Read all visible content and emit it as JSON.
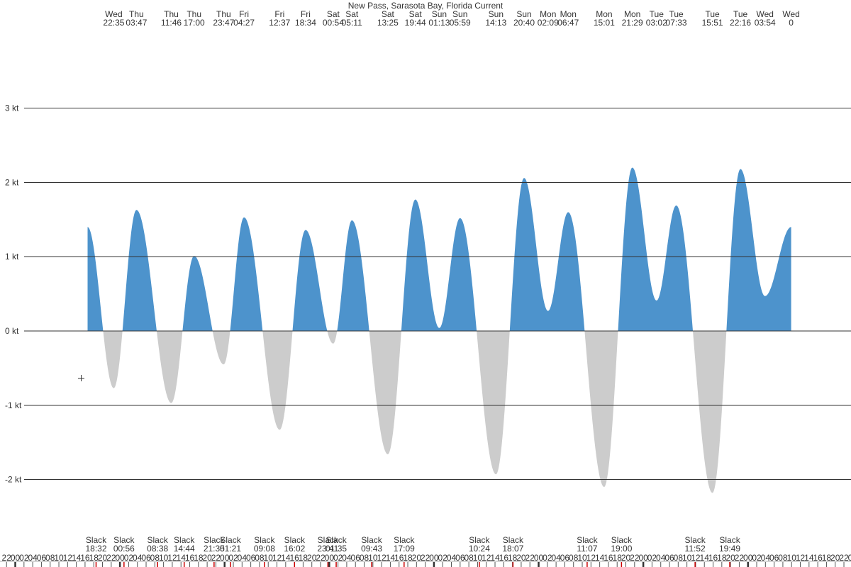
{
  "colors": {
    "flood": "#4d93cc",
    "ebb": "#cccccc",
    "grid": "#333333",
    "text": "#333333",
    "tick": "#555555",
    "highlight_tick": "#cc0000"
  },
  "chart_data": {
    "type": "area",
    "title": "New Pass, Sarasota Bay, Florida Current",
    "ylabel": "",
    "ylim": [
      -2.8,
      4.4
    ],
    "xlim_hours": [
      -27.5,
      167.5
    ],
    "grid": true,
    "y_ticks": [
      {
        "value": 3,
        "label": "3 kt"
      },
      {
        "value": 2,
        "label": "2 kt"
      },
      {
        "value": 1,
        "label": "1 kt"
      },
      {
        "value": 0,
        "label": "0 kt"
      },
      {
        "value": -1,
        "label": "-1 kt"
      },
      {
        "value": -2,
        "label": "-2 kt"
      }
    ],
    "extremes": [
      {
        "day": "Wed",
        "time": "22:35",
        "value": -0.77
      },
      {
        "day": "Thu",
        "time": "03:47",
        "value": 1.63
      },
      {
        "day": "Thu",
        "time": "11:46",
        "value": -0.97
      },
      {
        "day": "Thu",
        "time": "17:00",
        "value": 1.01
      },
      {
        "day": "Thu",
        "time": "23:47",
        "value": -0.45
      },
      {
        "day": "Fri",
        "time": "04:27",
        "value": 1.53
      },
      {
        "day": "Fri",
        "time": "12:37",
        "value": -1.33
      },
      {
        "day": "Fri",
        "time": "18:34",
        "value": 1.36
      },
      {
        "day": "Sat",
        "time": "00:54",
        "value": -0.17
      },
      {
        "day": "Sat",
        "time": "05:11",
        "value": 1.49
      },
      {
        "day": "Sat",
        "time": "13:25",
        "value": -1.66
      },
      {
        "day": "Sat",
        "time": "19:44",
        "value": 1.77
      },
      {
        "day": "Sun",
        "time": "01:13",
        "value": 0.04
      },
      {
        "day": "Sun",
        "time": "05:59",
        "value": 1.52
      },
      {
        "day": "Sun",
        "time": "14:13",
        "value": -1.93
      },
      {
        "day": "Sun",
        "time": "20:40",
        "value": 2.06
      },
      {
        "day": "Mon",
        "time": "02:09",
        "value": 0.27
      },
      {
        "day": "Mon",
        "time": "06:47",
        "value": 1.6
      },
      {
        "day": "Mon",
        "time": "15:01",
        "value": -2.1
      },
      {
        "day": "Mon",
        "time": "21:29",
        "value": 2.2
      },
      {
        "day": "Tue",
        "time": "03:02",
        "value": 0.41
      },
      {
        "day": "Tue",
        "time": "07:33",
        "value": 1.69
      },
      {
        "day": "Tue",
        "time": "15:51",
        "value": -2.18
      },
      {
        "day": "Tue",
        "time": "22:16",
        "value": 2.18
      },
      {
        "day": "Wed",
        "time": "03:54",
        "value": 0.47
      },
      {
        "day": "Wed",
        "time": "0",
        "value": 1.4
      }
    ],
    "slacks": [
      {
        "label": "Slack",
        "time": "18:32"
      },
      {
        "label": "Slack",
        "time": "00:56"
      },
      {
        "label": "Slack",
        "time": "08:38"
      },
      {
        "label": "Slack",
        "time": "14:44"
      },
      {
        "label": "Slack",
        "time": "21:35"
      },
      {
        "label": "Slack",
        "time": "01:21"
      },
      {
        "label": "Slack",
        "time": "09:08"
      },
      {
        "label": "Slack",
        "time": "16:02"
      },
      {
        "label": "Slack",
        "time": "23:41"
      },
      {
        "label": "Slack",
        "time": "01:35"
      },
      {
        "label": "Slack",
        "time": "09:43"
      },
      {
        "label": "Slack",
        "time": "17:09"
      },
      {
        "label": "Slack",
        "time": "10:24"
      },
      {
        "label": "Slack",
        "time": "18:07"
      },
      {
        "label": "Slack",
        "time": "11:07"
      },
      {
        "label": "Slack",
        "time": "19:00"
      },
      {
        "label": "Slack",
        "time": "11:52"
      },
      {
        "label": "Slack",
        "time": "19:49"
      }
    ],
    "hour_tick_labels": [
      "00",
      "02",
      "04",
      "06",
      "08",
      "10",
      "12",
      "14",
      "16",
      "18",
      "20",
      "22"
    ]
  }
}
